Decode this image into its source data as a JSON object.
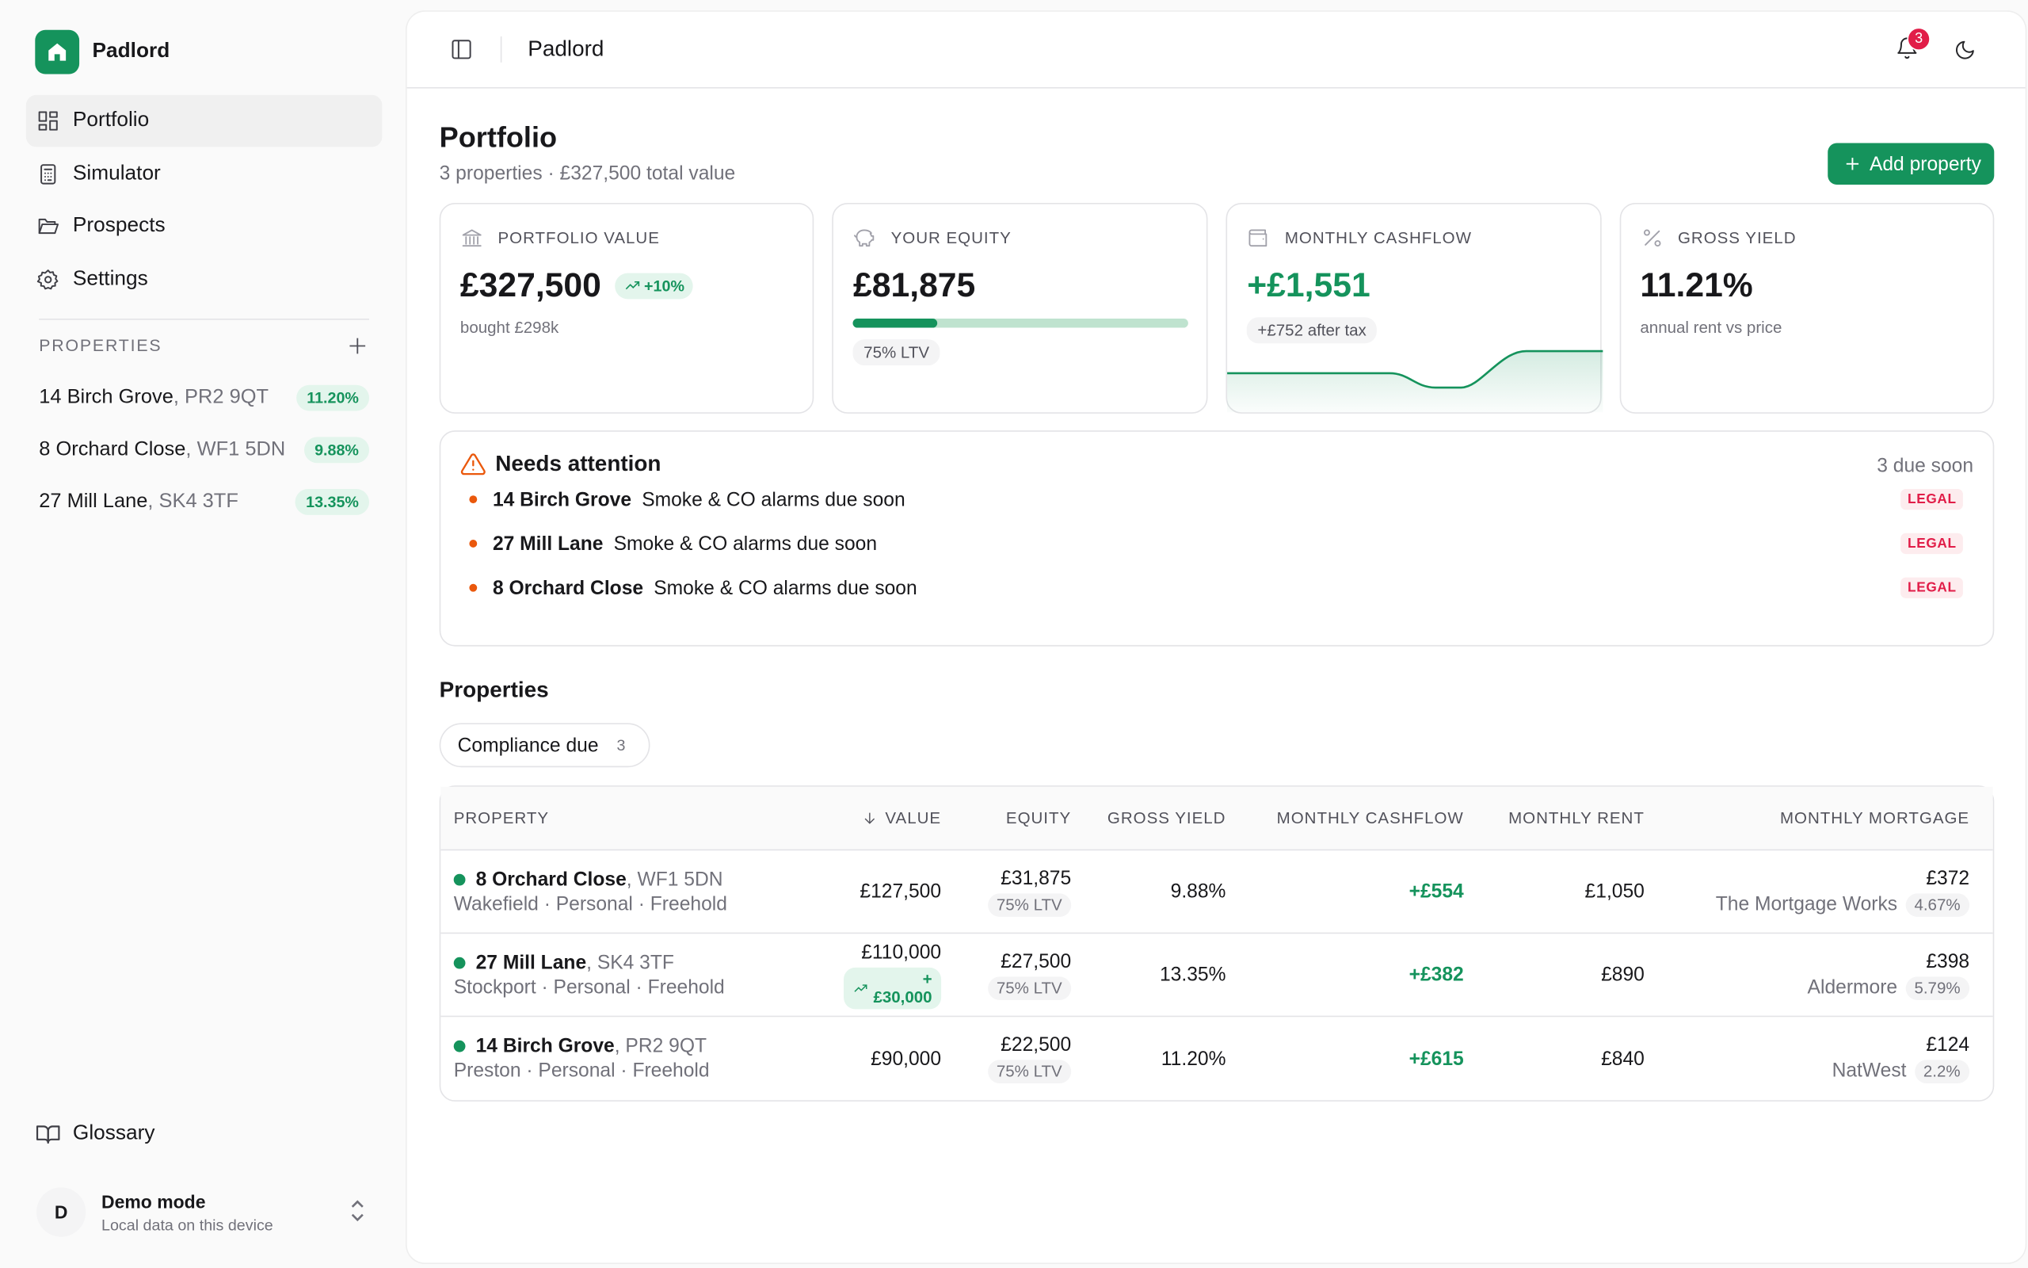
{
  "app": {
    "name": "Padlord"
  },
  "sidebar": {
    "nav": [
      {
        "label": "Portfolio",
        "icon": "grid-icon",
        "active": true
      },
      {
        "label": "Simulator",
        "icon": "calculator-icon"
      },
      {
        "label": "Prospects",
        "icon": "folder-icon"
      },
      {
        "label": "Settings",
        "icon": "gear-icon"
      }
    ],
    "properties_title": "PROPERTIES",
    "properties": [
      {
        "name": "14 Birch Grove",
        "postcode": ", PR2 9QT",
        "yield": "11.20%"
      },
      {
        "name": "8 Orchard Close",
        "postcode": ", WF1 5DN",
        "yield": "9.88%"
      },
      {
        "name": "27 Mill Lane",
        "postcode": ", SK4 3TF",
        "yield": "13.35%"
      }
    ],
    "glossary": "Glossary",
    "user": {
      "initial": "D",
      "name": "Demo mode",
      "sub": "Local data on this device"
    }
  },
  "topbar": {
    "title": "Padlord",
    "notifications": "3"
  },
  "page": {
    "title": "Portfolio",
    "subtitle": "3 properties · £327,500 total value",
    "add_button": "Add property"
  },
  "kpis": {
    "portfolio_value": {
      "label": "PORTFOLIO VALUE",
      "value": "£327,500",
      "change": "+10%",
      "sub": "bought £298k"
    },
    "equity": {
      "label": "YOUR EQUITY",
      "value": "£81,875",
      "ltv": "75% LTV",
      "equity_fraction": 0.25
    },
    "cashflow": {
      "label": "MONTHLY CASHFLOW",
      "value": "+£1,551",
      "sub": "+£752 after tax"
    },
    "yield": {
      "label": "GROSS YIELD",
      "value": "11.21%",
      "sub": "annual rent vs price"
    }
  },
  "attention": {
    "title": "Needs attention",
    "count": "3 due soon",
    "items": [
      {
        "property": "14 Birch Grove",
        "text": "Smoke & CO alarms due soon",
        "tag": "LEGAL"
      },
      {
        "property": "27 Mill Lane",
        "text": "Smoke & CO alarms due soon",
        "tag": "LEGAL"
      },
      {
        "property": "8 Orchard Close",
        "text": "Smoke & CO alarms due soon",
        "tag": "LEGAL"
      }
    ]
  },
  "properties_section": {
    "title": "Properties",
    "filter": {
      "label": "Compliance due",
      "count": "3"
    },
    "columns": [
      "PROPERTY",
      "VALUE",
      "EQUITY",
      "GROSS YIELD",
      "MONTHLY CASHFLOW",
      "MONTHLY RENT",
      "MONTHLY MORTGAGE"
    ],
    "rows": [
      {
        "name": "8 Orchard Close",
        "postcode": ", WF1 5DN",
        "meta": "Wakefield · Personal · Freehold",
        "value": "£127,500",
        "value_change": "",
        "equity": "£31,875",
        "ltv": "75% LTV",
        "yield": "9.88%",
        "cashflow": "+£554",
        "rent": "£1,050",
        "mortgage": "£372",
        "lender": "The Mortgage Works",
        "rate": "4.67%"
      },
      {
        "name": "27 Mill Lane",
        "postcode": ", SK4 3TF",
        "meta": "Stockport · Personal · Freehold",
        "value": "£110,000",
        "value_change": "+£30,000",
        "equity": "£27,500",
        "ltv": "75% LTV",
        "yield": "13.35%",
        "cashflow": "+£382",
        "rent": "£890",
        "mortgage": "£398",
        "lender": "Aldermore",
        "rate": "5.79%"
      },
      {
        "name": "14 Birch Grove",
        "postcode": ", PR2 9QT",
        "meta": "Preston · Personal · Freehold",
        "value": "£90,000",
        "value_change": "",
        "equity": "£22,500",
        "ltv": "75% LTV",
        "yield": "11.20%",
        "cashflow": "+£615",
        "rent": "£840",
        "mortgage": "£124",
        "lender": "NatWest",
        "rate": "2.2%"
      }
    ]
  },
  "colors": {
    "brand": "#15935c",
    "alert": "#ea580c",
    "legal": "#e11d48"
  }
}
